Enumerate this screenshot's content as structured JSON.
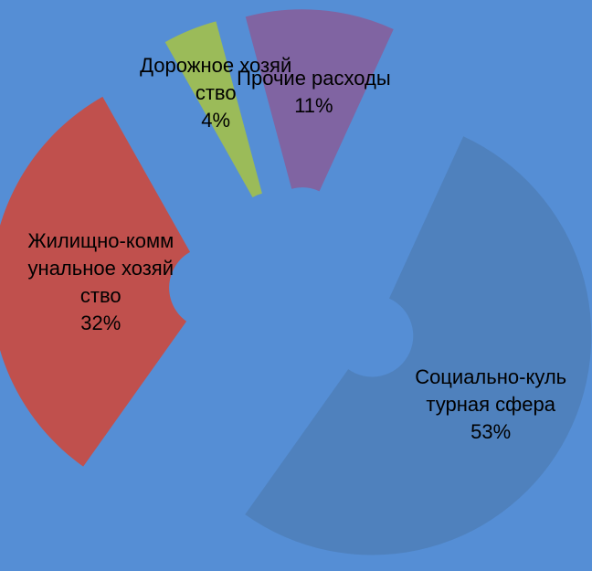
{
  "chart_data": {
    "type": "pie",
    "categories": [
      "Социально-культурная сфера",
      "Жилищно-коммунальное хозяйство",
      "Дорожное хозяйство",
      "Прочие расходы"
    ],
    "values": [
      53,
      32,
      4,
      11
    ],
    "value_labels": [
      "53%",
      "32%",
      "4%",
      "11%"
    ],
    "colors": [
      "#4f81bd",
      "#c0504d",
      "#9bbb59",
      "#8064a2"
    ]
  }
}
